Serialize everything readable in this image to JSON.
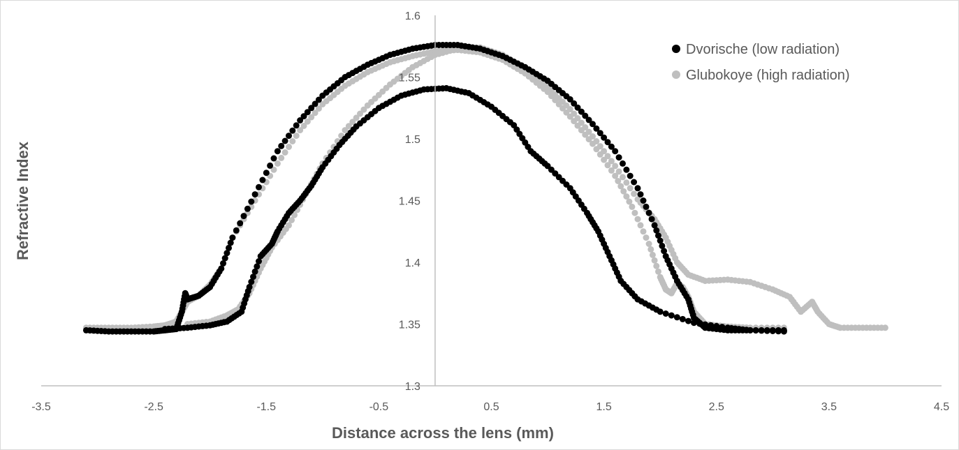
{
  "chart_data": {
    "type": "scatter",
    "title": "",
    "xlabel": "Distance across the lens (mm)",
    "ylabel": "Refractive Index",
    "xlim": [
      -3.5,
      4.5
    ],
    "ylim": [
      1.3,
      1.6
    ],
    "x_ticks": [
      "-3.5",
      "-2.5",
      "-1.5",
      "-0.5",
      "0.5",
      "1.5",
      "2.5",
      "3.5",
      "4.5"
    ],
    "y_ticks": [
      "1.3",
      "1.35",
      "1.4",
      "1.45",
      "1.5",
      "1.55",
      "1.6"
    ],
    "grid": false,
    "legend_position": "top-right",
    "series": [
      {
        "name": "Dvorische (low radiation)",
        "color": "#000000",
        "points": [
          [
            -3.1,
            1.345
          ],
          [
            -2.9,
            1.344
          ],
          [
            -2.7,
            1.344
          ],
          [
            -2.5,
            1.344
          ],
          [
            -2.4,
            1.345
          ],
          [
            -2.3,
            1.346
          ],
          [
            -2.25,
            1.36
          ],
          [
            -2.22,
            1.375
          ],
          [
            -2.2,
            1.37
          ],
          [
            -2.1,
            1.373
          ],
          [
            -2.0,
            1.38
          ],
          [
            -1.9,
            1.395
          ],
          [
            -1.8,
            1.42
          ],
          [
            -1.6,
            1.455
          ],
          [
            -1.4,
            1.49
          ],
          [
            -1.2,
            1.515
          ],
          [
            -1.0,
            1.535
          ],
          [
            -0.8,
            1.55
          ],
          [
            -0.6,
            1.56
          ],
          [
            -0.4,
            1.568
          ],
          [
            -0.2,
            1.573
          ],
          [
            0.0,
            1.576
          ],
          [
            0.2,
            1.576
          ],
          [
            0.4,
            1.573
          ],
          [
            0.6,
            1.567
          ],
          [
            0.8,
            1.558
          ],
          [
            1.0,
            1.547
          ],
          [
            1.2,
            1.532
          ],
          [
            1.4,
            1.512
          ],
          [
            1.6,
            1.49
          ],
          [
            1.8,
            1.46
          ],
          [
            1.95,
            1.43
          ],
          [
            2.05,
            1.405
          ],
          [
            2.15,
            1.385
          ],
          [
            2.25,
            1.37
          ],
          [
            2.3,
            1.355
          ],
          [
            2.4,
            1.347
          ],
          [
            2.6,
            1.345
          ],
          [
            2.8,
            1.345
          ],
          [
            3.1,
            1.345
          ],
          [
            -2.4,
            1.346
          ],
          [
            -2.2,
            1.347
          ],
          [
            -2.0,
            1.349
          ],
          [
            -1.85,
            1.352
          ],
          [
            -1.72,
            1.36
          ],
          [
            -1.65,
            1.38
          ],
          [
            -1.55,
            1.405
          ],
          [
            -1.45,
            1.415
          ],
          [
            -1.4,
            1.425
          ],
          [
            -1.3,
            1.44
          ],
          [
            -1.2,
            1.45
          ],
          [
            -1.1,
            1.462
          ],
          [
            -1.0,
            1.477
          ],
          [
            -0.85,
            1.495
          ],
          [
            -0.7,
            1.51
          ],
          [
            -0.5,
            1.525
          ],
          [
            -0.3,
            1.535
          ],
          [
            -0.1,
            1.54
          ],
          [
            0.1,
            1.541
          ],
          [
            0.3,
            1.537
          ],
          [
            0.5,
            1.526
          ],
          [
            0.7,
            1.511
          ],
          [
            0.85,
            1.49
          ],
          [
            1.0,
            1.478
          ],
          [
            1.2,
            1.46
          ],
          [
            1.35,
            1.44
          ],
          [
            1.45,
            1.425
          ],
          [
            1.55,
            1.405
          ],
          [
            1.65,
            1.385
          ],
          [
            1.8,
            1.37
          ],
          [
            2.0,
            1.36
          ],
          [
            2.3,
            1.351
          ],
          [
            2.6,
            1.347
          ],
          [
            2.8,
            1.345
          ],
          [
            3.1,
            1.344
          ]
        ]
      },
      {
        "name": "Glubokoye (high radiation)",
        "color": "#bfbfbf",
        "points": [
          [
            -3.1,
            1.347
          ],
          [
            -2.9,
            1.347
          ],
          [
            -2.7,
            1.347
          ],
          [
            -2.5,
            1.348
          ],
          [
            -2.4,
            1.349
          ],
          [
            -2.3,
            1.352
          ],
          [
            -2.25,
            1.36
          ],
          [
            -2.2,
            1.368
          ],
          [
            -2.1,
            1.373
          ],
          [
            -2.0,
            1.382
          ],
          [
            -1.9,
            1.395
          ],
          [
            -1.8,
            1.42
          ],
          [
            -1.6,
            1.45
          ],
          [
            -1.4,
            1.48
          ],
          [
            -1.2,
            1.507
          ],
          [
            -1.0,
            1.528
          ],
          [
            -0.8,
            1.543
          ],
          [
            -0.6,
            1.554
          ],
          [
            -0.4,
            1.562
          ],
          [
            -0.2,
            1.567
          ],
          [
            0.0,
            1.571
          ],
          [
            0.2,
            1.572
          ],
          [
            0.4,
            1.57
          ],
          [
            0.6,
            1.564
          ],
          [
            0.8,
            1.553
          ],
          [
            1.0,
            1.538
          ],
          [
            1.2,
            1.518
          ],
          [
            1.4,
            1.496
          ],
          [
            1.6,
            1.47
          ],
          [
            1.75,
            1.445
          ],
          [
            1.9,
            1.415
          ],
          [
            2.0,
            1.388
          ],
          [
            2.05,
            1.378
          ],
          [
            2.1,
            1.375
          ],
          [
            2.15,
            1.383
          ],
          [
            2.2,
            1.38
          ],
          [
            2.25,
            1.372
          ],
          [
            2.3,
            1.36
          ],
          [
            2.4,
            1.35
          ],
          [
            2.6,
            1.348
          ],
          [
            2.8,
            1.347
          ],
          [
            3.1,
            1.347
          ],
          [
            -2.2,
            1.35
          ],
          [
            -2.0,
            1.352
          ],
          [
            -1.85,
            1.357
          ],
          [
            -1.75,
            1.362
          ],
          [
            -1.65,
            1.375
          ],
          [
            -1.55,
            1.395
          ],
          [
            -1.45,
            1.412
          ],
          [
            -1.3,
            1.43
          ],
          [
            -1.15,
            1.455
          ],
          [
            -1.0,
            1.48
          ],
          [
            -0.8,
            1.507
          ],
          [
            -0.6,
            1.527
          ],
          [
            -0.4,
            1.544
          ],
          [
            -0.2,
            1.558
          ],
          [
            0.0,
            1.568
          ],
          [
            0.2,
            1.573
          ],
          [
            0.4,
            1.574
          ],
          [
            0.6,
            1.568
          ],
          [
            0.8,
            1.557
          ],
          [
            1.0,
            1.542
          ],
          [
            1.2,
            1.524
          ],
          [
            1.4,
            1.502
          ],
          [
            1.6,
            1.478
          ],
          [
            1.8,
            1.451
          ],
          [
            1.95,
            1.435
          ],
          [
            2.05,
            1.42
          ],
          [
            2.15,
            1.4
          ],
          [
            2.25,
            1.39
          ],
          [
            2.4,
            1.385
          ],
          [
            2.6,
            1.386
          ],
          [
            2.8,
            1.384
          ],
          [
            3.0,
            1.378
          ],
          [
            3.15,
            1.372
          ],
          [
            3.25,
            1.36
          ],
          [
            3.35,
            1.368
          ],
          [
            3.4,
            1.36
          ],
          [
            3.5,
            1.35
          ],
          [
            3.6,
            1.347
          ],
          [
            3.8,
            1.347
          ],
          [
            4.0,
            1.347
          ]
        ]
      }
    ]
  }
}
